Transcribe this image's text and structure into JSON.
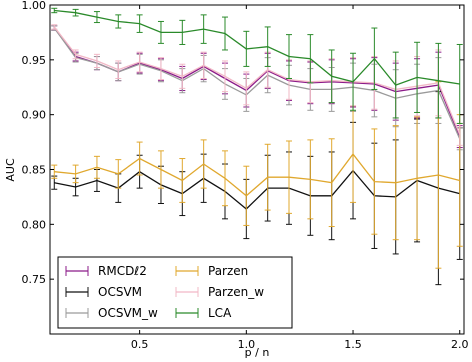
{
  "chart_data": {
    "type": "line",
    "title": "",
    "xlabel": "p / n",
    "ylabel": "AUC",
    "xlim": [
      0.08,
      2.02
    ],
    "ylim": [
      0.7,
      1.0
    ],
    "xticks": [
      0.5,
      1.0,
      1.5,
      2.0
    ],
    "xtick_labels": [
      "0.5",
      "1.0",
      "1.5",
      "2.0"
    ],
    "yticks": [
      0.75,
      0.8,
      0.85,
      0.9,
      0.95,
      1.0
    ],
    "ytick_labels": [
      "0.75",
      "0.80",
      "0.85",
      "0.90",
      "0.95",
      "1.00"
    ],
    "grid": false,
    "legend_position": "bottom-left",
    "x": [
      0.1,
      0.2,
      0.3,
      0.4,
      0.5,
      0.6,
      0.7,
      0.8,
      0.9,
      1.0,
      1.1,
      1.2,
      1.3,
      1.4,
      1.5,
      1.6,
      1.7,
      1.8,
      1.9,
      2.0
    ],
    "series": [
      {
        "name": "RMCDℓ2",
        "color": "#8b1a89",
        "values": [
          0.979,
          0.953,
          0.947,
          0.939,
          0.947,
          0.941,
          0.933,
          0.944,
          0.933,
          0.922,
          0.94,
          0.931,
          0.929,
          0.93,
          0.929,
          0.928,
          0.921,
          0.924,
          0.927,
          0.88
        ],
        "errors": [
          0.002,
          0.004,
          0.006,
          0.008,
          0.009,
          0.01,
          0.011,
          0.012,
          0.014,
          0.015,
          0.016,
          0.018,
          0.019,
          0.02,
          0.022,
          0.024,
          0.026,
          0.027,
          0.03,
          0.01
        ]
      },
      {
        "name": "OCSVM",
        "color": "#111111",
        "values": [
          0.838,
          0.834,
          0.84,
          0.833,
          0.848,
          0.836,
          0.828,
          0.842,
          0.83,
          0.814,
          0.833,
          0.833,
          0.826,
          0.826,
          0.849,
          0.826,
          0.825,
          0.84,
          0.833,
          0.828
        ],
        "errors": [
          0.006,
          0.008,
          0.01,
          0.013,
          0.015,
          0.017,
          0.02,
          0.022,
          0.025,
          0.027,
          0.03,
          0.033,
          0.036,
          0.04,
          0.044,
          0.048,
          0.052,
          0.056,
          0.088,
          0.06
        ]
      },
      {
        "name": "OCSVM_w",
        "color": "#9a9a9a",
        "values": [
          0.979,
          0.952,
          0.947,
          0.939,
          0.946,
          0.94,
          0.931,
          0.942,
          0.928,
          0.918,
          0.936,
          0.927,
          0.923,
          0.923,
          0.925,
          0.922,
          0.915,
          0.919,
          0.922,
          0.878
        ],
        "errors": [
          0.002,
          0.004,
          0.006,
          0.008,
          0.009,
          0.01,
          0.011,
          0.012,
          0.014,
          0.015,
          0.016,
          0.018,
          0.019,
          0.02,
          0.022,
          0.024,
          0.026,
          0.027,
          0.03,
          0.01
        ]
      },
      {
        "name": "Parzen",
        "color": "#e0a82e",
        "values": [
          0.848,
          0.846,
          0.852,
          0.846,
          0.86,
          0.85,
          0.84,
          0.855,
          0.842,
          0.826,
          0.843,
          0.843,
          0.841,
          0.838,
          0.864,
          0.839,
          0.838,
          0.842,
          0.845,
          0.84
        ],
        "errors": [
          0.006,
          0.008,
          0.01,
          0.013,
          0.015,
          0.017,
          0.02,
          0.022,
          0.025,
          0.027,
          0.03,
          0.033,
          0.036,
          0.04,
          0.044,
          0.048,
          0.052,
          0.056,
          0.085,
          0.06
        ]
      },
      {
        "name": "Parzen_w",
        "color": "#f2b8c6",
        "values": [
          0.98,
          0.955,
          0.949,
          0.941,
          0.948,
          0.942,
          0.935,
          0.945,
          0.935,
          0.924,
          0.941,
          0.932,
          0.93,
          0.931,
          0.93,
          0.929,
          0.923,
          0.926,
          0.929,
          0.882
        ],
        "errors": [
          0.002,
          0.004,
          0.006,
          0.008,
          0.009,
          0.01,
          0.011,
          0.012,
          0.014,
          0.015,
          0.016,
          0.018,
          0.019,
          0.02,
          0.022,
          0.024,
          0.026,
          0.027,
          0.03,
          0.01
        ]
      },
      {
        "name": "LCA",
        "color": "#2a8a2a",
        "values": [
          0.995,
          0.993,
          0.989,
          0.985,
          0.983,
          0.975,
          0.975,
          0.978,
          0.974,
          0.96,
          0.962,
          0.953,
          0.951,
          0.935,
          0.93,
          0.951,
          0.927,
          0.934,
          0.931,
          0.928
        ],
        "errors": [
          0.002,
          0.003,
          0.005,
          0.006,
          0.008,
          0.01,
          0.011,
          0.013,
          0.015,
          0.016,
          0.018,
          0.02,
          0.022,
          0.024,
          0.026,
          0.028,
          0.03,
          0.032,
          0.034,
          0.036
        ]
      }
    ]
  }
}
